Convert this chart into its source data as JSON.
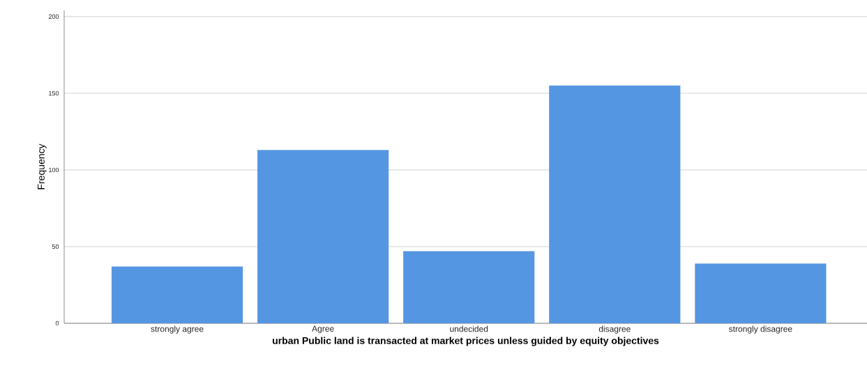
{
  "chart_data": {
    "type": "bar",
    "xlabel": "urban Public land is transacted at market prices unless guided by equity objectives",
    "ylabel": "Frequency",
    "categories": [
      "strongly agree",
      "Agree",
      "undecided",
      "disagree",
      "strongly disagree"
    ],
    "values": [
      37,
      113,
      47,
      155,
      39
    ],
    "color": "#5596e2",
    "ylim": [
      0,
      204
    ],
    "yticks": [
      0,
      50,
      100,
      150,
      200
    ],
    "grid": "y"
  }
}
